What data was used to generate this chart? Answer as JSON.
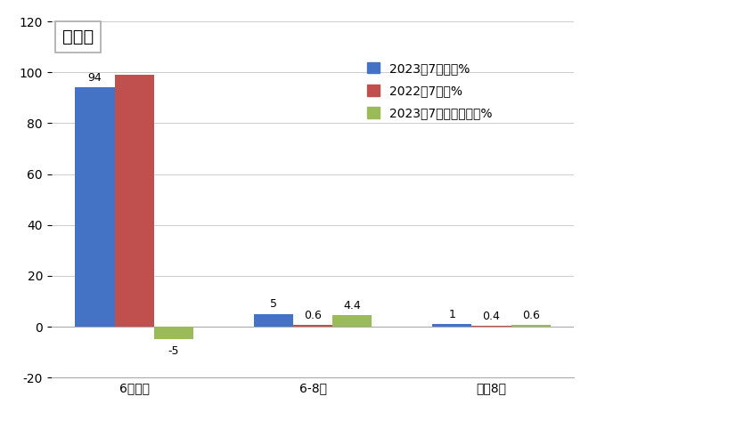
{
  "categories": [
    "6米以下",
    "6-8米",
    "大于8米"
  ],
  "series": [
    {
      "name": "2023年7月占比%",
      "values": [
        94,
        5,
        1
      ],
      "color": "#4472C4"
    },
    {
      "name": "2022年7占比%",
      "values": [
        99,
        0.6,
        0.4
      ],
      "color": "#C0504D"
    },
    {
      "name": "2023年7占比同比增减%",
      "values": [
        -5,
        4.4,
        0.6
      ],
      "color": "#9BBB59"
    }
  ],
  "ylim": [
    -20,
    120
  ],
  "yticks": [
    -20,
    0,
    20,
    40,
    60,
    80,
    100,
    120
  ],
  "bar_width": 0.22,
  "background_color": "#FFFFFF",
  "plot_area_color": "#FFFFFF",
  "label_fontsize": 9,
  "legend_fontsize": 10,
  "tick_fontsize": 10,
  "annotation_values": {
    "6米以下": [
      94,
      null,
      -5
    ],
    "6-8米": [
      5,
      0.6,
      4.4
    ],
    "大于8米": [
      1,
      0.4,
      0.6
    ]
  },
  "textbox_label": "图表区"
}
